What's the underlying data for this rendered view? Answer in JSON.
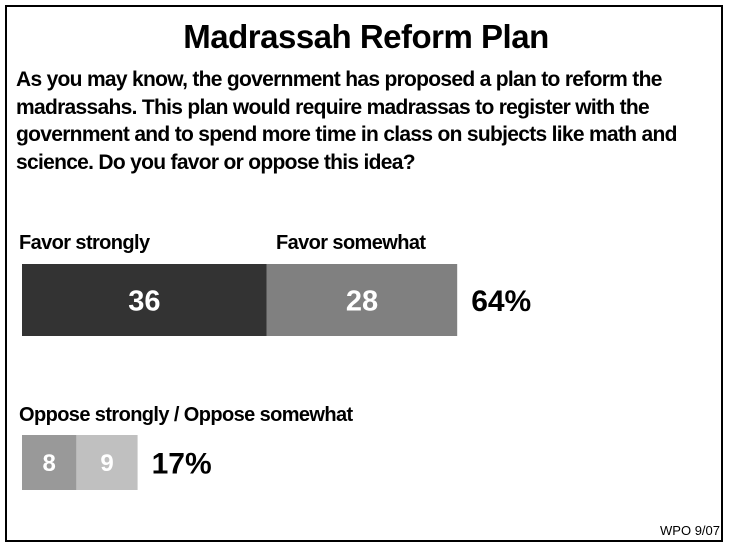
{
  "title": "Madrassah Reform Plan",
  "question": "As you may know, the government has proposed a plan to reform the madrassahs.  This plan would require madrassas to register with the government and to spend more time in class on subjects like math and science.  Do you favor or oppose this idea?",
  "footer": "WPO 9/07",
  "chart_data": {
    "type": "bar",
    "orientation": "horizontal",
    "stacked": true,
    "groups": [
      {
        "label": "Favor strongly",
        "label2": "Favor somewhat",
        "segments": [
          {
            "name": "Favor strongly",
            "value": 36,
            "color": "#333333",
            "text_color": "#ffffff"
          },
          {
            "name": "Favor somewhat",
            "value": 28,
            "color": "#808080",
            "text_color": "#ffffff"
          }
        ],
        "total_label": "64%"
      },
      {
        "label": "Oppose strongly / Oppose somewhat",
        "segments": [
          {
            "name": "Oppose strongly",
            "value": 8,
            "color": "#999999",
            "text_color": "#ffffff"
          },
          {
            "name": "Oppose somewhat",
            "value": 9,
            "color": "#c0c0c0",
            "text_color": "#ffffff"
          }
        ],
        "total_label": "17%"
      }
    ]
  }
}
